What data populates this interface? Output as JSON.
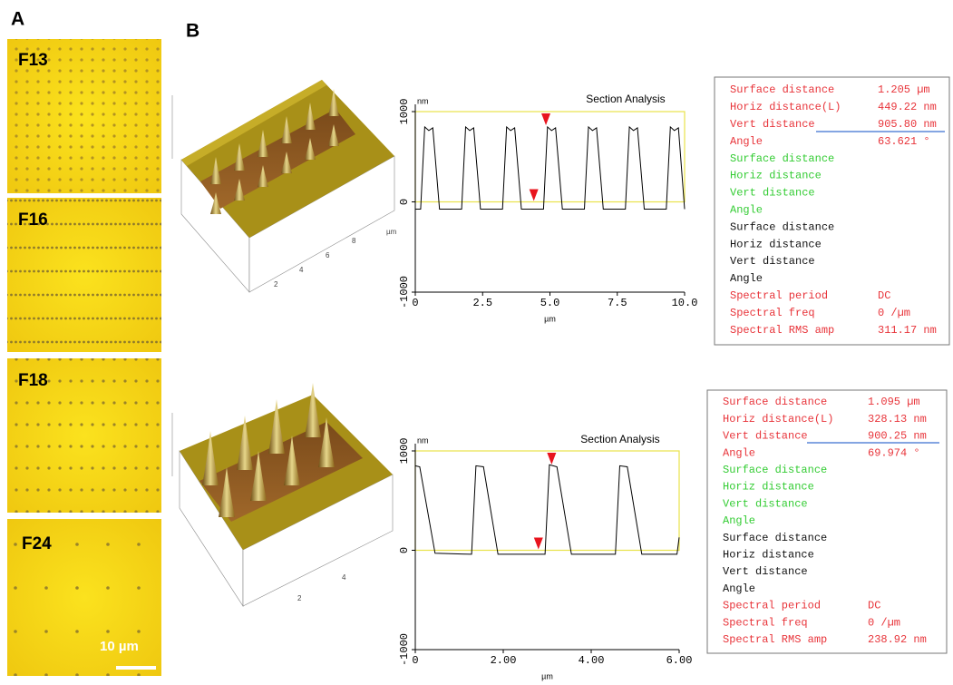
{
  "panel_a": {
    "label": "A",
    "images": [
      {
        "label": "F13"
      },
      {
        "label": "F16"
      },
      {
        "label": "F18"
      },
      {
        "label": "F24"
      }
    ],
    "scale_bar": "10 µm"
  },
  "panel_b": {
    "label": "B",
    "surfaces": [
      {
        "axis_labels": [
          "2",
          "4",
          "6",
          "8",
          "µm"
        ]
      },
      {
        "axis_labels": [
          "2",
          "4"
        ]
      }
    ]
  },
  "chart_data": [
    {
      "type": "line",
      "title": "Section Analysis",
      "y_unit": "nm",
      "x_label": "µm",
      "color": "#000000",
      "x": [
        0,
        0.2,
        0.35,
        0.5,
        0.65,
        0.9,
        1.72,
        1.87,
        2.02,
        2.17,
        2.42,
        3.24,
        3.39,
        3.54,
        3.69,
        3.94,
        4.76,
        4.91,
        5.06,
        5.21,
        5.46,
        6.28,
        6.43,
        6.58,
        6.73,
        6.98,
        7.8,
        7.95,
        8.1,
        8.25,
        8.5,
        9.32,
        9.47,
        9.62,
        9.77,
        10.0
      ],
      "values": [
        -80,
        -80,
        830,
        790,
        820,
        -80,
        -80,
        830,
        790,
        820,
        -80,
        -80,
        830,
        790,
        820,
        -80,
        -80,
        830,
        790,
        820,
        -80,
        -80,
        830,
        790,
        820,
        -80,
        -80,
        830,
        790,
        820,
        -80,
        -80,
        830,
        790,
        820,
        -80
      ],
      "cursors": {
        "color": "#e8141e",
        "points": [
          {
            "x": 4.85,
            "y": 1000
          },
          {
            "x": 4.4,
            "y": 0
          }
        ]
      },
      "xlim": [
        0,
        10
      ],
      "xticks": [
        0,
        2.5,
        {
          "value": 5,
          "label": "5.0"
        },
        7.5,
        {
          "value": 10,
          "label": "10.0"
        }
      ],
      "ylim": [
        -1000,
        1000
      ],
      "yticks": [
        -1000,
        0,
        1000
      ]
    },
    {
      "type": "line",
      "title": "Section Analysis",
      "y_unit": "nm",
      "x_label": "µm",
      "color": "#000000",
      "x": [
        0,
        0.1,
        0.45,
        1.28,
        1.38,
        1.55,
        1.88,
        2.95,
        3.05,
        3.22,
        3.55,
        4.55,
        4.65,
        4.82,
        5.15,
        5.95,
        6.0
      ],
      "values": [
        850,
        840,
        -30,
        -40,
        850,
        840,
        -40,
        -40,
        860,
        840,
        -40,
        -40,
        850,
        840,
        -40,
        -40,
        130
      ],
      "cursors": {
        "color": "#e8141e",
        "points": [
          {
            "x": 3.1,
            "y": 1000
          },
          {
            "x": 2.8,
            "y": 0
          }
        ]
      },
      "xlim": [
        0,
        6
      ],
      "xticks": [
        0,
        {
          "value": 2,
          "label": "2.00"
        },
        {
          "value": 4,
          "label": "4.00"
        },
        {
          "value": 6,
          "label": "6.00"
        }
      ],
      "ylim": [
        -1000,
        1000
      ],
      "yticks": [
        -1000,
        0,
        1000
      ]
    }
  ],
  "tables": [
    {
      "rows": [
        {
          "label": "Surface distance",
          "value": "1.205 µm",
          "color": "#e8343a"
        },
        {
          "label": "Horiz distance(L)",
          "value": "449.22 nm",
          "color": "#e8343a"
        },
        {
          "label": "Vert distance",
          "value": "905.80 nm",
          "color": "#e8343a"
        },
        {
          "label": "Angle",
          "value": "63.621 °",
          "color": "#e8343a"
        },
        {
          "label": "Surface distance",
          "color": "#33cc33"
        },
        {
          "label": "Horiz distance",
          "color": "#33cc33"
        },
        {
          "label": "Vert distance",
          "color": "#33cc33"
        },
        {
          "label": "Angle",
          "color": "#33cc33"
        },
        {
          "label": "Surface distance",
          "color": "#111111"
        },
        {
          "label": "Horiz distance",
          "color": "#111111"
        },
        {
          "label": "Vert distance",
          "color": "#111111"
        },
        {
          "label": "Angle",
          "color": "#111111"
        },
        {
          "label": "Spectral period",
          "value": "DC",
          "color": "#e8343a"
        },
        {
          "label": "Spectral freq",
          "value": "0 /µm",
          "color": "#e8343a"
        },
        {
          "label": "Spectral RMS amp",
          "value": "311.17 nm",
          "color": "#e8343a"
        }
      ]
    },
    {
      "rows": [
        {
          "label": "Surface distance",
          "value": "1.095 µm",
          "color": "#e8343a"
        },
        {
          "label": "Horiz distance(L)",
          "value": "328.13 nm",
          "color": "#e8343a"
        },
        {
          "label": "Vert distance",
          "value": "900.25 nm",
          "color": "#e8343a"
        },
        {
          "label": "Angle",
          "value": "69.974 °",
          "color": "#e8343a"
        },
        {
          "label": "Surface distance",
          "color": "#33cc33"
        },
        {
          "label": "Horiz distance",
          "color": "#33cc33"
        },
        {
          "label": "Vert distance",
          "color": "#33cc33"
        },
        {
          "label": "Angle",
          "color": "#33cc33"
        },
        {
          "label": "Surface distance",
          "color": "#111111"
        },
        {
          "label": "Horiz distance",
          "color": "#111111"
        },
        {
          "label": "Vert distance",
          "color": "#111111"
        },
        {
          "label": "Angle",
          "color": "#111111"
        },
        {
          "label": "Spectral period",
          "value": "DC",
          "color": "#e8343a"
        },
        {
          "label": "Spectral freq",
          "value": "0 /µm",
          "color": "#e8343a"
        },
        {
          "label": "Spectral RMS amp",
          "value": "238.92 nm",
          "color": "#e8343a"
        }
      ]
    }
  ]
}
